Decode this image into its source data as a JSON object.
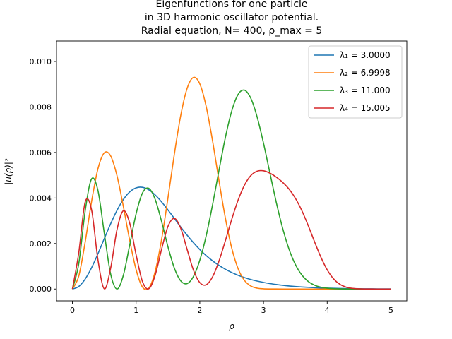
{
  "chart_data": {
    "type": "line",
    "title_lines": [
      "Eigenfunctions for one particle",
      "in 3D harmonic oscillator potential.",
      "Radial equation, N= 400, ρ_max = 5"
    ],
    "xlabel": "ρ",
    "ylabel": "|u(ρ)|²",
    "xlim": [
      -0.25,
      5.25
    ],
    "ylim": [
      -0.00052,
      0.0109
    ],
    "xticks": [
      0,
      1,
      2,
      3,
      4,
      5
    ],
    "xtick_labels": [
      "0",
      "1",
      "2",
      "3",
      "4",
      "5"
    ],
    "yticks": [
      0.0,
      0.002,
      0.004,
      0.006,
      0.008,
      0.01
    ],
    "ytick_labels": [
      "0.000",
      "0.002",
      "0.004",
      "0.006",
      "0.008",
      "0.010"
    ],
    "grid": false,
    "legend_position": "top-right",
    "x": [
      0.0,
      0.1,
      0.2,
      0.3,
      0.4,
      0.5,
      0.6,
      0.7,
      0.8,
      0.9,
      1.0,
      1.1,
      1.2,
      1.3,
      1.4,
      1.5,
      1.6,
      1.7,
      1.8,
      1.9,
      2.0,
      2.1,
      2.2,
      2.3,
      2.4,
      2.5,
      2.6,
      2.7,
      2.8,
      2.9,
      3.0,
      3.1,
      3.2,
      3.3,
      3.4,
      3.5,
      3.6,
      3.7,
      3.8,
      3.9,
      4.0,
      4.1,
      4.2,
      4.3,
      4.4,
      4.5,
      4.6,
      4.7,
      4.8,
      4.9,
      5.0
    ],
    "series": [
      {
        "name": "λ₁ = 3.0000",
        "color": "#1f77b4",
        "values": [
          0.0,
          0.000113,
          0.000436,
          0.000933,
          0.001546,
          0.002212,
          0.002868,
          0.003457,
          0.003934,
          0.004269,
          0.004447,
          0.004471,
          0.004357,
          0.004132,
          0.003829,
          0.003477,
          0.003103,
          0.002728,
          0.00237,
          0.002038,
          0.001737,
          0.001471,
          0.001239,
          0.00104,
          0.000871,
          0.000727,
          0.000606,
          0.000505,
          0.00042,
          0.000349,
          0.00029,
          0.00024,
          0.000199,
          0.000164,
          0.000135,
          0.000111,
          9.08e-05,
          7.4e-05,
          6.02e-05,
          4.88e-05,
          3.95e-05,
          3.18e-05,
          2.56e-05,
          2.05e-05,
          1.64e-05,
          1.31e-05,
          1.04e-05,
          8.3e-06,
          6.6e-06,
          5.2e-06,
          4.1e-06
        ]
      },
      {
        "name": "λ₂ = 6.9998",
        "color": "#ff7f0e",
        "values": [
          0.0,
          0.000573,
          0.002058,
          0.003836,
          0.005275,
          0.005983,
          0.005849,
          0.004977,
          0.003624,
          0.002131,
          0.00085,
          8.9e-05,
          4.8e-05,
          0.000779,
          0.002178,
          0.003998,
          0.005918,
          0.007618,
          0.008808,
          0.009297,
          0.009017,
          0.008024,
          0.006515,
          0.004786,
          0.00314,
          0.001813,
          0.000904,
          0.000381,
          0.000134,
          3.89e-05,
          9.3e-06,
          1.8e-06,
          3e-07,
          0.0,
          0.0,
          0.0,
          0.0,
          0.0,
          0.0,
          0.0,
          0.0,
          0.0,
          0.0,
          0.0,
          0.0,
          0.0,
          0.0,
          0.0,
          0.0,
          0.0,
          0.0
        ]
      },
      {
        "name": "λ₃ = 11.000",
        "color": "#2ca02c",
        "values": [
          0.0,
          0.00112,
          0.003426,
          0.004835,
          0.004341,
          0.002462,
          0.00066,
          6e-07,
          0.000609,
          0.001945,
          0.003305,
          0.004219,
          0.004424,
          0.003935,
          0.00297,
          0.00186,
          0.000922,
          0.000359,
          0.000238,
          0.000551,
          0.001264,
          0.002338,
          0.003697,
          0.005197,
          0.00664,
          0.007811,
          0.008544,
          0.008741,
          0.008388,
          0.007563,
          0.006411,
          0.005108,
          0.00382,
          0.002678,
          0.001758,
          0.001081,
          0.000623,
          0.000336,
          0.00017,
          8.07e-05,
          3.6e-05,
          1.51e-05,
          6e-06,
          2.2e-06,
          8e-07,
          3e-07,
          0.0,
          0.0,
          0.0,
          0.0,
          0.0
        ]
      },
      {
        "name": "λ₄ = 15.005",
        "color": "#d62728",
        "values": [
          0.0,
          0.001598,
          0.003822,
          0.003489,
          0.001301,
          1.12e-05,
          0.000913,
          0.002609,
          0.003441,
          0.002889,
          0.001502,
          0.000327,
          1.3e-05,
          0.000614,
          0.001746,
          0.002747,
          0.003104,
          0.002673,
          0.00175,
          0.000833,
          0.000283,
          0.000186,
          0.000534,
          0.00122,
          0.002111,
          0.003049,
          0.003898,
          0.004558,
          0.004982,
          0.005179,
          0.005196,
          0.005093,
          0.004918,
          0.00469,
          0.004393,
          0.003992,
          0.003458,
          0.002802,
          0.002087,
          0.001406,
          0.000846,
          0.000448,
          0.000207,
          8.28e-05,
          2.86e-05,
          8.5e-06,
          2.2e-06,
          5e-07,
          1e-07,
          0.0,
          0.0
        ]
      }
    ]
  }
}
